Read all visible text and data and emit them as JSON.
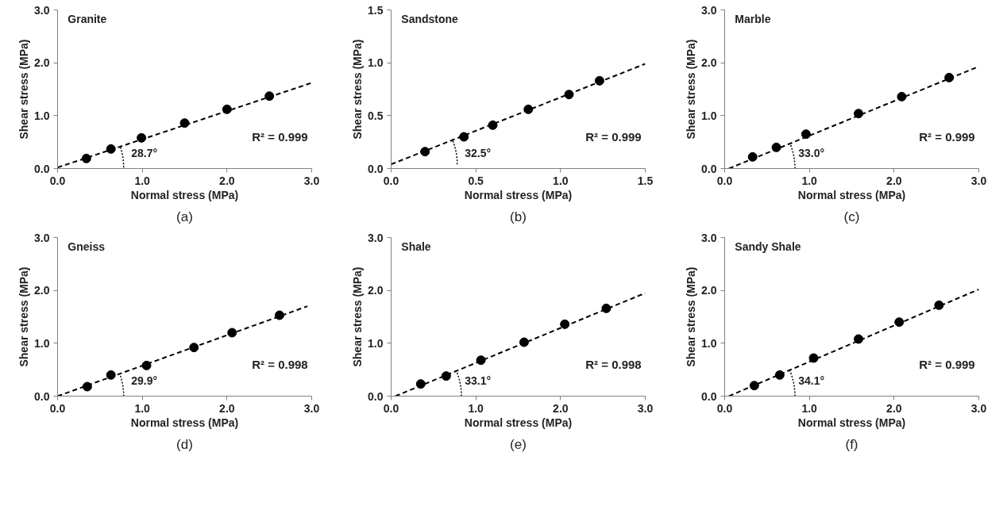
{
  "chart_data": [
    {
      "type": "scatter",
      "title": "Granite",
      "xlabel": "Normal stress (MPa)",
      "ylabel": "Shear stress (MPa)",
      "xlim": [
        0,
        3
      ],
      "ylim": [
        0,
        3
      ],
      "xticks": [
        {
          "value": 0,
          "label": "0.0"
        },
        {
          "value": 1,
          "label": "1.0"
        },
        {
          "value": 2,
          "label": "2.0"
        },
        {
          "value": 3,
          "label": "3.0"
        }
      ],
      "yticks": [
        {
          "value": 0,
          "label": "0.0"
        },
        {
          "value": 1,
          "label": "1.0"
        },
        {
          "value": 2,
          "label": "2.0"
        },
        {
          "value": 3,
          "label": "3.0"
        }
      ],
      "grid": false,
      "annotations": [
        "R² = 0.999",
        "28.7°",
        "(a)"
      ],
      "series": [
        {
          "type": "scatter",
          "color": "#000000",
          "marker": "circle",
          "x": [
            0.34,
            0.63,
            0.99,
            1.5,
            2.0,
            2.5
          ],
          "values": [
            0.19,
            0.37,
            0.58,
            0.86,
            1.12,
            1.37
          ]
        },
        {
          "type": "line",
          "color": "#000000",
          "line_style": "dashed",
          "x": [
            0,
            3
          ],
          "values": [
            0.02,
            1.62
          ]
        }
      ]
    },
    {
      "type": "scatter",
      "title": "Sandstone",
      "xlabel": "Normal stress (MPa)",
      "ylabel": "Shear stress (MPa)",
      "xlim": [
        0,
        1.5
      ],
      "ylim": [
        0,
        1.5
      ],
      "xticks": [
        {
          "value": 0,
          "label": "0.0"
        },
        0.5,
        {
          "value": 1,
          "label": "1.0"
        },
        1.5
      ],
      "yticks": [
        {
          "value": 0,
          "label": "0.0"
        },
        0.5,
        {
          "value": 1,
          "label": "1.0"
        },
        1.5
      ],
      "grid": false,
      "annotations": [
        "R² = 0.999",
        "32.5°",
        "(b)"
      ],
      "series": [
        {
          "type": "scatter",
          "color": "#000000",
          "marker": "circle",
          "x": [
            0.2,
            0.43,
            0.6,
            0.81,
            1.05,
            1.23
          ],
          "values": [
            0.16,
            0.3,
            0.41,
            0.56,
            0.7,
            0.83
          ]
        },
        {
          "type": "line",
          "color": "#000000",
          "line_style": "dashed",
          "x": [
            0,
            1.5
          ],
          "values": [
            0.04,
            0.99
          ]
        }
      ]
    },
    {
      "type": "scatter",
      "title": "Marble",
      "xlabel": "Normal stress (MPa)",
      "ylabel": "Shear stress (MPa)",
      "xlim": [
        0,
        3
      ],
      "ylim": [
        0,
        3
      ],
      "xticks": [
        {
          "value": 0,
          "label": "0.0"
        },
        {
          "value": 1,
          "label": "1.0"
        },
        {
          "value": 2,
          "label": "2.0"
        },
        {
          "value": 3,
          "label": "3.0"
        }
      ],
      "yticks": [
        {
          "value": 0,
          "label": "0.0"
        },
        {
          "value": 1,
          "label": "1.0"
        },
        {
          "value": 2,
          "label": "2.0"
        },
        {
          "value": 3,
          "label": "3.0"
        }
      ],
      "grid": false,
      "annotations": [
        "R² = 0.999",
        "33.0°",
        "(c)"
      ],
      "series": [
        {
          "type": "scatter",
          "color": "#000000",
          "marker": "circle",
          "x": [
            0.33,
            0.61,
            0.96,
            1.58,
            2.09,
            2.65
          ],
          "values": [
            0.22,
            0.4,
            0.65,
            1.04,
            1.36,
            1.72
          ]
        },
        {
          "type": "line",
          "color": "#000000",
          "line_style": "dashed",
          "x": [
            0.05,
            3
          ],
          "values": [
            0,
            1.93
          ]
        }
      ]
    },
    {
      "type": "scatter",
      "title": "Gneiss",
      "xlabel": "Normal stress (MPa)",
      "ylabel": "Shear stress (MPa)",
      "xlim": [
        0,
        3
      ],
      "ylim": [
        0,
        3
      ],
      "xticks": [
        {
          "value": 0,
          "label": "0.0"
        },
        {
          "value": 1,
          "label": "1.0"
        },
        {
          "value": 2,
          "label": "2.0"
        },
        {
          "value": 3,
          "label": "3.0"
        }
      ],
      "yticks": [
        {
          "value": 0,
          "label": "0.0"
        },
        {
          "value": 1,
          "label": "1.0"
        },
        {
          "value": 2,
          "label": "2.0"
        },
        {
          "value": 3,
          "label": "3.0"
        }
      ],
      "grid": false,
      "annotations": [
        "R² = 0.998",
        "29.9°",
        "(d)"
      ],
      "series": [
        {
          "type": "scatter",
          "color": "#000000",
          "marker": "circle",
          "x": [
            0.35,
            0.63,
            1.05,
            1.61,
            2.06,
            2.62
          ],
          "values": [
            0.18,
            0.4,
            0.58,
            0.92,
            1.2,
            1.53
          ]
        },
        {
          "type": "line",
          "color": "#000000",
          "line_style": "dashed",
          "x": [
            0,
            2.95
          ],
          "values": [
            0,
            1.7
          ]
        }
      ]
    },
    {
      "type": "scatter",
      "title": "Shale",
      "xlabel": "Normal stress (MPa)",
      "ylabel": "Shear stress (MPa)",
      "xlim": [
        0,
        3
      ],
      "ylim": [
        0,
        3
      ],
      "xticks": [
        {
          "value": 0,
          "label": "0.0"
        },
        {
          "value": 1,
          "label": "1.0"
        },
        {
          "value": 2,
          "label": "2.0"
        },
        {
          "value": 3,
          "label": "3.0"
        }
      ],
      "yticks": [
        {
          "value": 0,
          "label": "0.0"
        },
        {
          "value": 1,
          "label": "1.0"
        },
        {
          "value": 2,
          "label": "2.0"
        },
        {
          "value": 3,
          "label": "3.0"
        }
      ],
      "grid": false,
      "annotations": [
        "R² = 0.998",
        "33.1°",
        "(e)"
      ],
      "series": [
        {
          "type": "scatter",
          "color": "#000000",
          "marker": "circle",
          "x": [
            0.35,
            0.65,
            1.06,
            1.57,
            2.05,
            2.54
          ],
          "values": [
            0.23,
            0.38,
            0.68,
            1.02,
            1.36,
            1.66
          ]
        },
        {
          "type": "line",
          "color": "#000000",
          "line_style": "dashed",
          "x": [
            0.05,
            3
          ],
          "values": [
            0,
            1.95
          ]
        }
      ]
    },
    {
      "type": "scatter",
      "title": "Sandy Shale",
      "xlabel": "Normal stress (MPa)",
      "ylabel": "Shear stress (MPa)",
      "xlim": [
        0,
        3
      ],
      "ylim": [
        0,
        3
      ],
      "xticks": [
        {
          "value": 0,
          "label": "0.0"
        },
        {
          "value": 1,
          "label": "1.0"
        },
        {
          "value": 2,
          "label": "2.0"
        },
        {
          "value": 3,
          "label": "3.0"
        }
      ],
      "yticks": [
        {
          "value": 0,
          "label": "0.0"
        },
        {
          "value": 1,
          "label": "1.0"
        },
        {
          "value": 2,
          "label": "2.0"
        },
        {
          "value": 3,
          "label": "3.0"
        }
      ],
      "grid": false,
      "annotations": [
        "R² = 0.999",
        "34.1°",
        "(f)"
      ],
      "series": [
        {
          "type": "scatter",
          "color": "#000000",
          "marker": "circle",
          "x": [
            0.35,
            0.65,
            1.05,
            1.58,
            2.06,
            2.53
          ],
          "values": [
            0.2,
            0.4,
            0.72,
            1.08,
            1.4,
            1.72
          ]
        },
        {
          "type": "line",
          "color": "#000000",
          "line_style": "dashed",
          "x": [
            0.05,
            3
          ],
          "values": [
            0,
            2.02
          ]
        }
      ]
    }
  ]
}
